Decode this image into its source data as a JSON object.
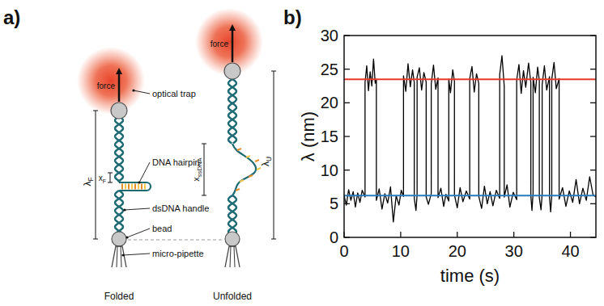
{
  "diagram": {
    "panel_label": "a)",
    "force_labels": [
      "force",
      "force"
    ],
    "callouts": {
      "optical_trap": "optical trap",
      "dna_hairpin": "DNA hairpin",
      "dsdna_handle": "dsDNA handle",
      "bead": "bead",
      "micro_pipette": "micro-pipette"
    },
    "states": [
      "Folded",
      "Unfolded"
    ],
    "distances": {
      "lambda_f": {
        "main": "λ",
        "sub": "F"
      },
      "x_f": {
        "main": "x",
        "sub": "F"
      },
      "x_ssdna": {
        "main": "x",
        "sub": "ssDNA"
      },
      "lambda_u": {
        "main": "λ",
        "sub": "U"
      }
    }
  },
  "chart_data": {
    "type": "line",
    "panel_label": "b)",
    "x_label": "time (s)",
    "y_label": "λ (nm)",
    "x": [
      0,
      0.4,
      0.8,
      1.2,
      1.6,
      2.0,
      2.4,
      2.8,
      3.2,
      3.7,
      3.7,
      4.0,
      4.3,
      4.6,
      4.9,
      5.2,
      5.5,
      5.7,
      5.7,
      6.2,
      6.7,
      7.2,
      7.7,
      8.2,
      8.7,
      9.2,
      9.7,
      10.1,
      10.5,
      10.5,
      10.9,
      11.3,
      11.7,
      12.1,
      12.4,
      12.4,
      12.7,
      12.9,
      12.9,
      13.3,
      13.7,
      14.1,
      14.5,
      14.5,
      14.9,
      15.4,
      15.4,
      15.8,
      16.2,
      16.6,
      16.6,
      17.1,
      17.6,
      18.0,
      18.5,
      18.5,
      18.8,
      19.2,
      19.5,
      19.5,
      20.0,
      20.5,
      21.0,
      21.6,
      22.2,
      22.2,
      22.6,
      23.0,
      23.4,
      23.8,
      23.8,
      24.3,
      24.8,
      25.3,
      25.8,
      26.3,
      26.9,
      27.5,
      27.5,
      27.9,
      28.3,
      28.3,
      28.8,
      29.3,
      29.9,
      30.5,
      30.5,
      30.9,
      31.3,
      31.7,
      32.1,
      32.6,
      33.0,
      33.0,
      33.2,
      33.4,
      33.4,
      33.8,
      34.2,
      34.5,
      34.5,
      34.8,
      35.0,
      35.0,
      35.4,
      35.8,
      36.3,
      36.3,
      36.5,
      36.7,
      36.7,
      37.1,
      37.5,
      38.0,
      38.0,
      38.6,
      39.2,
      39.8,
      40.4,
      41.0,
      41.6,
      42.2,
      42.8,
      43.4,
      44.0,
      44.5
    ],
    "series": [
      {
        "color": "#000000",
        "values": [
          6.2,
          4.8,
          7.1,
          5.5,
          6.8,
          4.5,
          6.6,
          5.2,
          7.0,
          6.0,
          23.0,
          25.5,
          21.8,
          24.6,
          22.5,
          26.5,
          22.9,
          23.5,
          5.5,
          7.2,
          4.2,
          6.5,
          5.1,
          7.5,
          2.3,
          6.2,
          4.8,
          7.0,
          6.1,
          24.0,
          21.7,
          25.8,
          22.4,
          24.9,
          23.0,
          5.8,
          4.0,
          6.3,
          23.8,
          25.2,
          21.9,
          24.5,
          23.1,
          6.0,
          4.9,
          6.5,
          22.8,
          25.6,
          22.0,
          23.7,
          5.9,
          7.3,
          4.6,
          6.4,
          5.4,
          23.5,
          21.5,
          24.9,
          23.2,
          6.3,
          4.4,
          7.4,
          5.3,
          6.9,
          5.7,
          23.6,
          25.4,
          21.6,
          24.3,
          22.9,
          6.1,
          4.3,
          7.6,
          5.0,
          6.8,
          4.7,
          7.0,
          5.8,
          24.2,
          27.0,
          22.5,
          6.0,
          7.8,
          4.5,
          6.7,
          5.6,
          23.4,
          25.7,
          21.4,
          24.8,
          22.3,
          25.9,
          23.0,
          6.2,
          4.0,
          6.6,
          23.8,
          21.5,
          25.3,
          23.3,
          5.9,
          4.1,
          6.4,
          22.7,
          25.5,
          21.9,
          23.9,
          6.0,
          3.8,
          6.2,
          23.5,
          26.0,
          22.1,
          23.6,
          5.7,
          7.4,
          4.6,
          6.9,
          5.2,
          8.6,
          5.0,
          7.3,
          5.5,
          9.0,
          6.3,
          6.0
        ]
      }
    ],
    "xlim": [
      0,
      44.5
    ],
    "xticks": [
      0,
      10,
      20,
      30,
      40
    ],
    "ylim": [
      0,
      30
    ],
    "yticks": [
      0,
      5,
      10,
      15,
      20,
      25,
      30
    ],
    "reference_lines": [
      {
        "value": 23.5,
        "color": "#e8392a"
      },
      {
        "value": 6.2,
        "color": "#2a7ab8"
      }
    ]
  }
}
